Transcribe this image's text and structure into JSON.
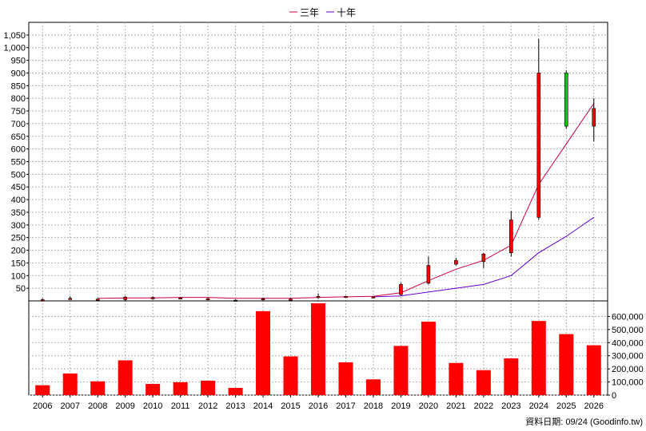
{
  "legend": {
    "series_3yr": "三年",
    "series_10yr": "十年",
    "color_3yr": "#cc0044",
    "color_10yr": "#6600cc"
  },
  "footer_note": "資料日期: 09/24  (Goodinfo.tw)",
  "colors": {
    "up": "#ff0000",
    "down": "#00cc00",
    "bar": "#ff0000",
    "wick": "#000000",
    "grid": "#b0b0b0"
  },
  "chart_data": [
    {
      "type": "candlestick",
      "x": [
        "2006",
        "2007",
        "2008",
        "2009",
        "2010",
        "2011",
        "2012",
        "2013",
        "2014",
        "2015",
        "2016",
        "2017",
        "2018",
        "2019",
        "2020",
        "2021",
        "2022",
        "2023",
        "2024",
        "2025",
        "2026"
      ],
      "ylim": [
        0,
        1100
      ],
      "yticks": [
        50,
        100,
        150,
        200,
        250,
        300,
        350,
        400,
        450,
        500,
        550,
        600,
        650,
        700,
        750,
        800,
        850,
        900,
        950,
        1000,
        1050
      ],
      "ytick_labels": [
        "50",
        "100",
        "150",
        "200",
        "250",
        "300",
        "350",
        "400",
        "450",
        "500",
        "550",
        "600",
        "650",
        "700",
        "750",
        "800",
        "850",
        "900",
        "950",
        "1,000",
        "1,050"
      ],
      "ohlc": [
        {
          "o": 3,
          "h": 10,
          "l": -2,
          "c": 5
        },
        {
          "o": 8,
          "h": 18,
          "l": 5,
          "c": 10
        },
        {
          "o": 5,
          "h": 10,
          "l": 2,
          "c": 7
        },
        {
          "o": 5,
          "h": 20,
          "l": 0,
          "c": 15
        },
        {
          "o": 8,
          "h": 18,
          "l": 5,
          "c": 14
        },
        {
          "o": 10,
          "h": 15,
          "l": 8,
          "c": 12
        },
        {
          "o": 7,
          "h": 12,
          "l": 4,
          "c": 9
        },
        {
          "o": 3,
          "h": 6,
          "l": 1,
          "c": 2
        },
        {
          "o": 5,
          "h": 12,
          "l": 2,
          "c": 9
        },
        {
          "o": 6,
          "h": 10,
          "l": 3,
          "c": 7
        },
        {
          "o": 14,
          "h": 30,
          "l": 8,
          "c": 18
        },
        {
          "o": 14,
          "h": 20,
          "l": 12,
          "c": 18
        },
        {
          "o": 15,
          "h": 18,
          "l": 12,
          "c": 16
        },
        {
          "o": 25,
          "h": 72,
          "l": 20,
          "c": 65
        },
        {
          "o": 70,
          "h": 175,
          "l": 65,
          "c": 140
        },
        {
          "o": 145,
          "h": 170,
          "l": 140,
          "c": 160
        },
        {
          "o": 155,
          "h": 190,
          "l": 130,
          "c": 185
        },
        {
          "o": 190,
          "h": 355,
          "l": 175,
          "c": 320
        },
        {
          "o": 330,
          "h": 1035,
          "l": 320,
          "c": 900
        },
        {
          "o": 900,
          "h": 910,
          "l": 680,
          "c": 690
        },
        {
          "o": 690,
          "h": 800,
          "l": 630,
          "c": 760
        }
      ],
      "line_3yr": [
        null,
        null,
        10,
        12,
        12,
        14,
        14,
        10,
        10,
        10,
        14,
        16,
        18,
        32,
        80,
        125,
        160,
        220,
        460,
        620,
        780
      ],
      "line_10yr": [
        null,
        null,
        null,
        null,
        null,
        null,
        null,
        null,
        null,
        null,
        null,
        null,
        16,
        20,
        35,
        50,
        65,
        100,
        190,
        255,
        330
      ]
    },
    {
      "type": "bar",
      "x": [
        "2006",
        "2007",
        "2008",
        "2009",
        "2010",
        "2011",
        "2012",
        "2013",
        "2014",
        "2015",
        "2016",
        "2017",
        "2018",
        "2019",
        "2020",
        "2021",
        "2022",
        "2023",
        "2024",
        "2025",
        "2026"
      ],
      "values": [
        75000,
        165000,
        105000,
        265000,
        85000,
        98000,
        110000,
        55000,
        640000,
        295000,
        700000,
        250000,
        120000,
        375000,
        560000,
        245000,
        190000,
        280000,
        565000,
        465000,
        380000
      ],
      "ylim": [
        0,
        700000
      ],
      "yticks": [
        0,
        100000,
        200000,
        300000,
        400000,
        500000,
        600000
      ],
      "ytick_labels": [
        "0",
        "100,000",
        "200,000",
        "300,000",
        "400,000",
        "500,000",
        "600,000"
      ]
    }
  ]
}
